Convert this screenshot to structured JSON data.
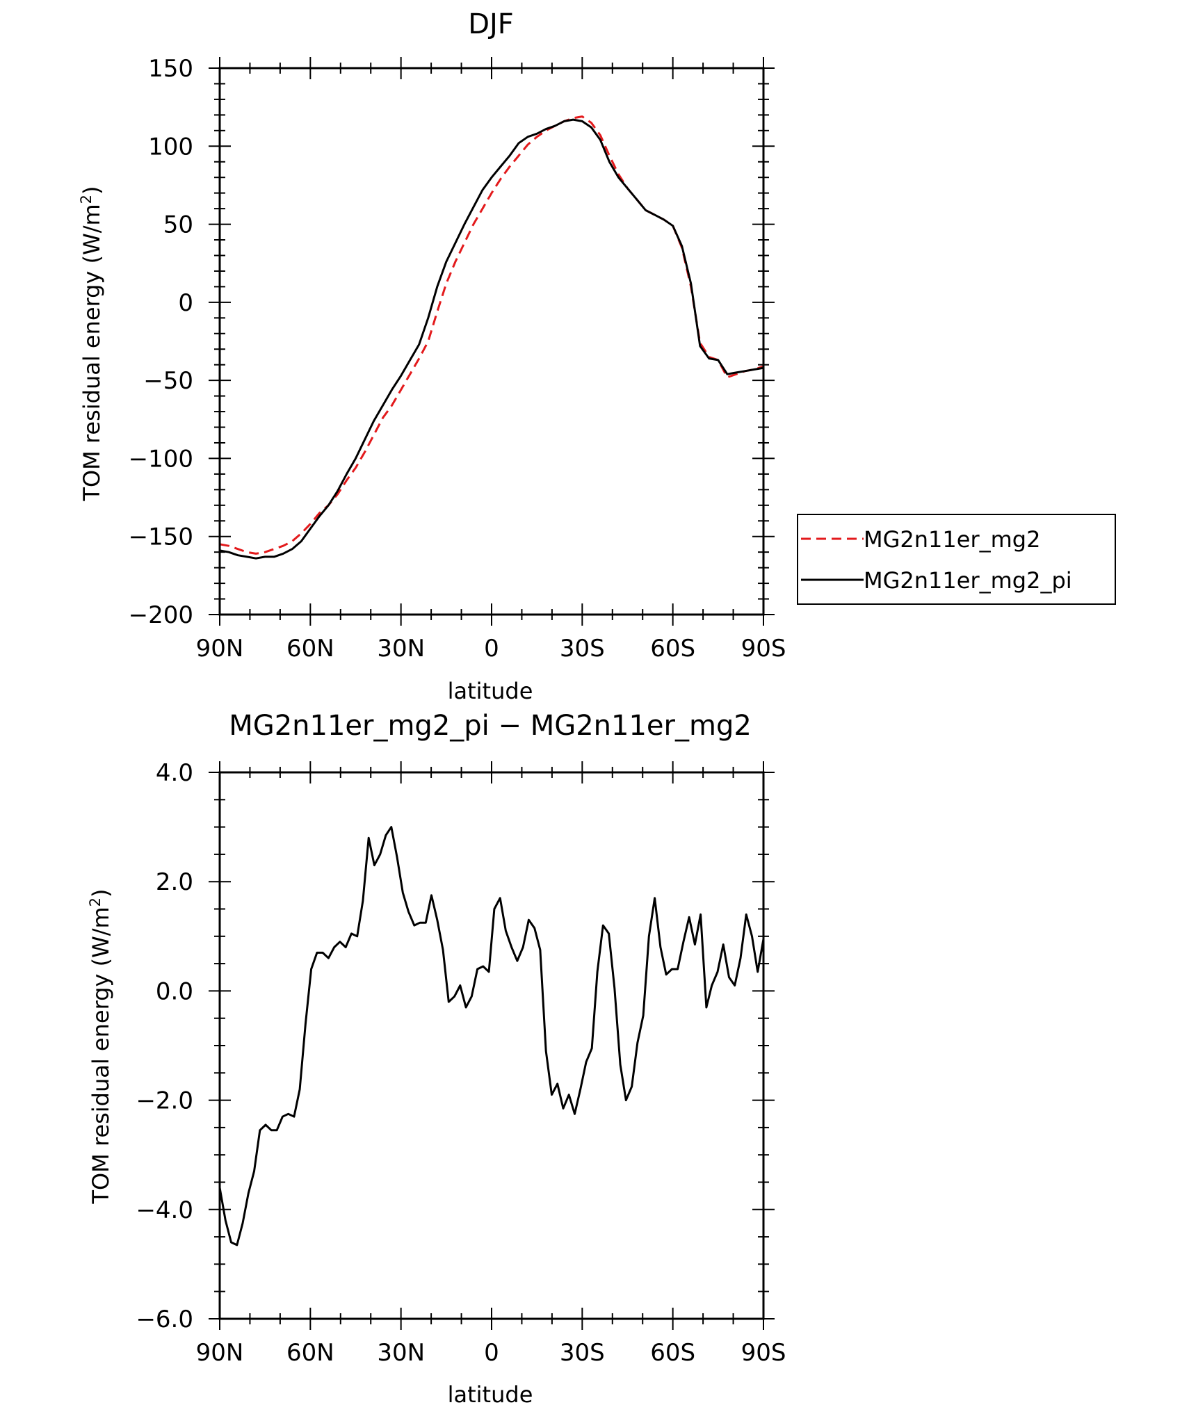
{
  "chart_data": [
    {
      "type": "line",
      "title": "DJF",
      "xlabel": "latitude",
      "ylabel": "TOM residual energy (W/m²)",
      "ylabel_main": "TOM residual energy (W/m",
      "ylabel_sup": "2",
      "ylabel_close": ")",
      "xlim": [
        90,
        -90
      ],
      "ylim": [
        -200,
        150
      ],
      "x_ticks": [
        90,
        60,
        30,
        0,
        -30,
        -60,
        -90
      ],
      "x_tick_labels": [
        "90N",
        "60N",
        "30N",
        "0",
        "30S",
        "60S",
        "90S"
      ],
      "y_ticks": [
        150,
        100,
        50,
        0,
        -50,
        -100,
        -150,
        -200
      ],
      "y_tick_labels": [
        "150",
        "100",
        "50",
        "0",
        "−50",
        "−100",
        "−150",
        "−200"
      ],
      "legend_placement": "right, outside",
      "series": [
        {
          "name": "MG2n11er_mg2",
          "color": "#e31a1c",
          "dash": "dashed",
          "x": [
            90,
            87,
            84,
            81,
            78,
            75,
            72,
            69,
            66,
            63,
            60,
            57,
            54,
            51,
            48,
            45,
            42,
            39,
            36,
            33,
            30,
            27,
            24,
            21,
            18,
            15,
            12,
            9,
            6,
            3,
            0,
            -3,
            -6,
            -9,
            -12,
            -15,
            -18,
            -21,
            -24,
            -27,
            -30,
            -33,
            -36,
            -39,
            -42,
            -45,
            -48,
            -51,
            -54,
            -57,
            -60,
            -63,
            -66,
            -69,
            -72,
            -75,
            -78,
            -81,
            -84,
            -87,
            -90
          ],
          "y": [
            -155,
            -156,
            -158,
            -160,
            -161,
            -160,
            -158,
            -156,
            -153,
            -148,
            -142,
            -135,
            -130,
            -123,
            -114,
            -106,
            -96,
            -85,
            -74,
            -66,
            -56,
            -46,
            -36,
            -25,
            -6,
            12,
            26,
            38,
            50,
            60,
            70,
            79,
            87,
            94,
            101,
            106,
            110,
            113,
            116,
            118,
            119,
            115,
            107,
            94,
            82,
            73,
            66,
            59,
            56,
            53,
            49,
            35,
            10,
            -26,
            -35,
            -37,
            -48,
            -46,
            -44,
            -43,
            -41
          ]
        },
        {
          "name": "MG2n11er_mg2_pi",
          "color": "#000000",
          "dash": "solid",
          "x": [
            90,
            87,
            84,
            81,
            78,
            75,
            72,
            69,
            66,
            63,
            60,
            57,
            54,
            51,
            48,
            45,
            42,
            39,
            36,
            33,
            30,
            27,
            24,
            21,
            18,
            15,
            12,
            9,
            6,
            3,
            0,
            -3,
            -6,
            -9,
            -12,
            -15,
            -18,
            -21,
            -24,
            -27,
            -30,
            -33,
            -36,
            -39,
            -42,
            -45,
            -48,
            -51,
            -54,
            -57,
            -60,
            -63,
            -66,
            -69,
            -72,
            -75,
            -78,
            -81,
            -84,
            -87,
            -90
          ],
          "y": [
            -159,
            -160,
            -162,
            -163,
            -164,
            -163,
            -163,
            -161,
            -158,
            -153,
            -145,
            -137,
            -130,
            -121,
            -110,
            -100,
            -88,
            -76,
            -66,
            -56,
            -47,
            -37,
            -27,
            -10,
            10,
            26,
            38,
            50,
            61,
            72,
            80,
            87,
            94,
            102,
            106,
            108,
            111,
            113,
            116,
            117,
            116,
            112,
            104,
            90,
            80,
            73,
            66,
            59,
            56,
            53,
            49,
            36,
            12,
            -28,
            -36,
            -37,
            -46,
            -45,
            -44,
            -43,
            -42
          ]
        }
      ]
    },
    {
      "type": "line",
      "title": "MG2n11er_mg2_pi − MG2n11er_mg2",
      "xlabel": "latitude",
      "ylabel": "TOM residual energy (W/m²)",
      "ylabel_main": "TOM residual energy (W/m",
      "ylabel_sup": "2",
      "ylabel_close": ")",
      "xlim": [
        90,
        -90
      ],
      "ylim": [
        -6,
        4
      ],
      "x_ticks": [
        90,
        60,
        30,
        0,
        -30,
        -60,
        -90
      ],
      "x_tick_labels": [
        "90N",
        "60N",
        "30N",
        "0",
        "30S",
        "60S",
        "90S"
      ],
      "y_ticks": [
        4,
        2,
        0,
        -2,
        -4,
        -6
      ],
      "y_tick_labels": [
        "4.0",
        "2.0",
        "0.0",
        "−2.0",
        "−4.0",
        "−6.0"
      ],
      "series": [
        {
          "color": "#000000",
          "dash": "solid",
          "x": [
            90,
            88.1,
            86.2,
            84.3,
            82.4,
            80.5,
            78.6,
            76.7,
            74.8,
            72.9,
            71.1,
            69.2,
            67.3,
            65.4,
            63.5,
            61.6,
            59.7,
            57.8,
            55.9,
            54,
            52.1,
            50.2,
            48.3,
            46.4,
            44.5,
            42.6,
            40.7,
            38.8,
            36.9,
            35,
            33.2,
            31.3,
            29.4,
            27.5,
            25.6,
            23.7,
            21.8,
            19.9,
            18,
            16.1,
            14.2,
            12.3,
            10.4,
            8.5,
            6.6,
            4.7,
            2.8,
            0.9,
            -0.9,
            -2.8,
            -4.7,
            -6.6,
            -8.5,
            -10.4,
            -12.3,
            -14.2,
            -16.1,
            -18,
            -19.9,
            -21.8,
            -23.7,
            -25.6,
            -27.5,
            -29.4,
            -31.3,
            -33.2,
            -35,
            -36.9,
            -38.8,
            -40.7,
            -42.6,
            -44.5,
            -46.4,
            -48.3,
            -50.2,
            -52.1,
            -54,
            -55.9,
            -57.8,
            -59.7,
            -61.6,
            -63.5,
            -65.4,
            -67.3,
            -69.2,
            -71.1,
            -72.9,
            -74.8,
            -76.7,
            -78.6,
            -80.5,
            -82.4,
            -84.3,
            -86.2,
            -88.1,
            -90
          ],
          "y": [
            -3.6,
            -4.2,
            -4.6,
            -4.65,
            -4.25,
            -3.7,
            -3.3,
            -2.55,
            -2.45,
            -2.55,
            -2.55,
            -2.3,
            -2.25,
            -2.3,
            -1.8,
            -0.6,
            0.4,
            0.7,
            0.7,
            0.6,
            0.8,
            0.9,
            0.8,
            1.05,
            1.0,
            1.65,
            2.8,
            2.3,
            2.5,
            2.85,
            3.0,
            2.45,
            1.8,
            1.45,
            1.2,
            1.25,
            1.25,
            1.75,
            1.3,
            0.75,
            -0.2,
            -0.1,
            0.1,
            -0.3,
            -0.1,
            0.4,
            0.45,
            0.35,
            1.5,
            1.7,
            1.1,
            0.8,
            0.55,
            0.8,
            1.3,
            1.15,
            0.75,
            -1.1,
            -1.9,
            -1.7,
            -2.15,
            -1.9,
            -2.25,
            -1.8,
            -1.3,
            -1.05,
            0.35,
            1.2,
            1.05,
            0.05,
            -1.35,
            -2.0,
            -1.75,
            -0.95,
            -0.45,
            1.0,
            1.7,
            0.8,
            0.3,
            0.4,
            0.4,
            0.9,
            1.35,
            0.85,
            1.4,
            -0.3,
            0.1,
            0.35,
            0.85,
            0.25,
            0.1,
            0.6,
            1.4,
            1.0,
            0.35,
            0.95
          ]
        }
      ]
    }
  ]
}
